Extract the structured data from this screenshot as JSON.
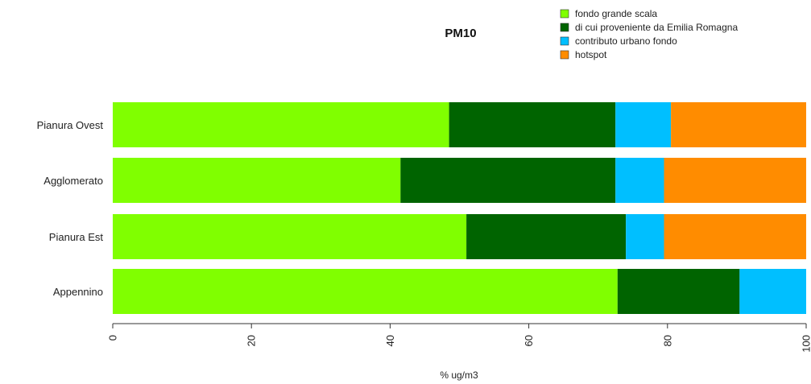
{
  "chart_data": {
    "type": "bar",
    "orientation": "horizontal",
    "stacked": true,
    "title": "PM10",
    "xlabel": "% ug/m3",
    "ylabel": "",
    "xlim": [
      0,
      100
    ],
    "xticks": [
      0,
      20,
      40,
      60,
      80,
      100
    ],
    "categories": [
      "Pianura Ovest",
      "Agglomerato",
      "Pianura Est",
      "Appennino"
    ],
    "series": [
      {
        "name": "fondo grande scala",
        "color": "#80ff00",
        "values": [
          48.5,
          41.5,
          51,
          72.8
        ]
      },
      {
        "name": "di cui proveniente da Emilia Romagna",
        "color": "#006400",
        "values": [
          24,
          31,
          23,
          17.6
        ]
      },
      {
        "name": "contributo urbano fondo",
        "color": "#00bfff",
        "values": [
          8,
          7,
          5.5,
          9.6
        ]
      },
      {
        "name": "hotspot",
        "color": "#ff8c00",
        "values": [
          19.5,
          20.5,
          20.5,
          0
        ]
      }
    ],
    "legend_position": "top-right",
    "grid": false
  }
}
